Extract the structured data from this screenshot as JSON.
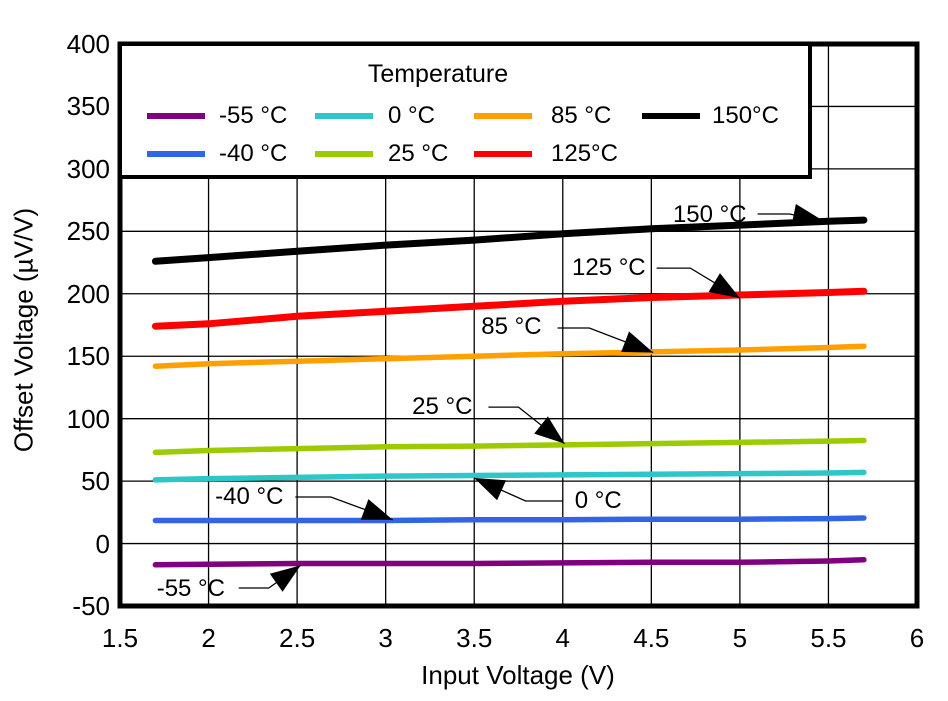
{
  "page": {
    "background": "#ffffff"
  },
  "chart_data": {
    "type": "line",
    "title": "",
    "xlabel": "Input Voltage (V)",
    "ylabel": "Offset Voltage (µV/V)",
    "xlim": [
      1.5,
      6
    ],
    "ylim": [
      -50,
      400
    ],
    "grid": true,
    "x_ticks": [
      1.5,
      2,
      2.5,
      3,
      3.5,
      4,
      4.5,
      5,
      5.5,
      6
    ],
    "x_tick_labels": [
      "1.5",
      "2",
      "2.5",
      "3",
      "3.5",
      "4",
      "4.5",
      "5",
      "5.5",
      "6"
    ],
    "y_ticks": [
      400,
      350,
      300,
      250,
      200,
      150,
      100,
      50,
      0,
      -50
    ],
    "y_tick_labels": [
      "400",
      "350",
      "300",
      "250",
      "200",
      "150",
      "100",
      "50",
      "0",
      "-50"
    ],
    "x": [
      1.7,
      2.0,
      2.5,
      3.0,
      3.5,
      4.0,
      4.5,
      5.0,
      5.5,
      5.7
    ],
    "series": [
      {
        "name": "-55 °C",
        "color": "#800080",
        "width": 5.5,
        "values": [
          -17,
          -16.5,
          -16,
          -16,
          -16,
          -15.5,
          -15,
          -15,
          -14,
          -13
        ]
      },
      {
        "name": "-40 °C",
        "color": "#3264E6",
        "width": 5.5,
        "values": [
          18.5,
          18.5,
          18.5,
          18.5,
          19,
          19,
          19.5,
          19.5,
          20,
          20.5
        ]
      },
      {
        "name": "0 °C",
        "color": "#2EC6C6",
        "width": 5.5,
        "values": [
          51,
          52,
          53,
          54,
          54.5,
          55,
          55.5,
          56,
          56.5,
          57
        ]
      },
      {
        "name": "25 °C",
        "color": "#9BCB00",
        "width": 5.5,
        "values": [
          73,
          74.5,
          76,
          77.5,
          78,
          79,
          80,
          81,
          82,
          82.5
        ]
      },
      {
        "name": "85 °C",
        "color": "#FFA000",
        "width": 5.5,
        "values": [
          142,
          144,
          146,
          148,
          150,
          152,
          153.5,
          155,
          157,
          158
        ]
      },
      {
        "name": "125°C",
        "color": "#FF0000",
        "width": 7,
        "values": [
          174,
          176,
          182,
          186,
          190,
          194,
          197,
          199,
          201,
          202
        ]
      },
      {
        "name": "150°C",
        "color": "#000000",
        "width": 7,
        "values": [
          226,
          229,
          234,
          239,
          243,
          248,
          252,
          255,
          258,
          259
        ]
      }
    ],
    "annotations": [
      {
        "label": "150 °C",
        "tx": 4.83,
        "ty": 263,
        "points": [
          [
            5.1,
            263.9
          ],
          [
            5.28,
            263.9
          ],
          [
            5.47,
            258.5
          ]
        ]
      },
      {
        "label": "125 °C",
        "tx": 4.26,
        "ty": 221,
        "points": [
          [
            4.53,
            220.6
          ],
          [
            4.72,
            220.6
          ],
          [
            5.0,
            196.5
          ]
        ]
      },
      {
        "label": "85 °C",
        "tx": 3.71,
        "ty": 173,
        "points": [
          [
            3.97,
            172.6
          ],
          [
            4.15,
            172.6
          ],
          [
            4.51,
            153.0
          ]
        ]
      },
      {
        "label": "25 °C",
        "tx": 3.32,
        "ty": 109,
        "points": [
          [
            3.58,
            109.3
          ],
          [
            3.75,
            109.3
          ],
          [
            4.01,
            80.0
          ]
        ]
      },
      {
        "label": "0 °C",
        "tx": 4.2,
        "ty": 34,
        "points": [
          [
            4.0,
            34.1
          ],
          [
            3.79,
            34.1
          ],
          [
            3.5,
            52.5
          ]
        ]
      },
      {
        "label": "-40 °C",
        "tx": 2.23,
        "ty": 37,
        "points": [
          [
            2.49,
            37.3
          ],
          [
            2.69,
            37.3
          ],
          [
            3.04,
            19.0
          ]
        ]
      },
      {
        "label": "-55 °C",
        "tx": 1.9,
        "ty": -36,
        "points": [
          [
            2.17,
            -35.6
          ],
          [
            2.34,
            -35.6
          ],
          [
            2.52,
            -17.5
          ]
        ]
      }
    ],
    "legend_position": "top-left-inside"
  },
  "legend": {
    "title": "Temperature",
    "rows": [
      [
        {
          "label": "-55 °C",
          "color": "#800080"
        },
        {
          "label": "0 °C",
          "color": "#2EC6C6"
        },
        {
          "label": "85 °C",
          "color": "#FFA000"
        },
        {
          "label": "150°C",
          "color": "#000000"
        }
      ],
      [
        {
          "label": "-40 °C",
          "color": "#3264E6"
        },
        {
          "label": "25 °C",
          "color": "#9BCB00"
        },
        {
          "label": "125°C",
          "color": "#FF0000"
        }
      ]
    ]
  },
  "colors": {
    "axis": "#000000",
    "grid": "#000000",
    "background": "#ffffff"
  }
}
